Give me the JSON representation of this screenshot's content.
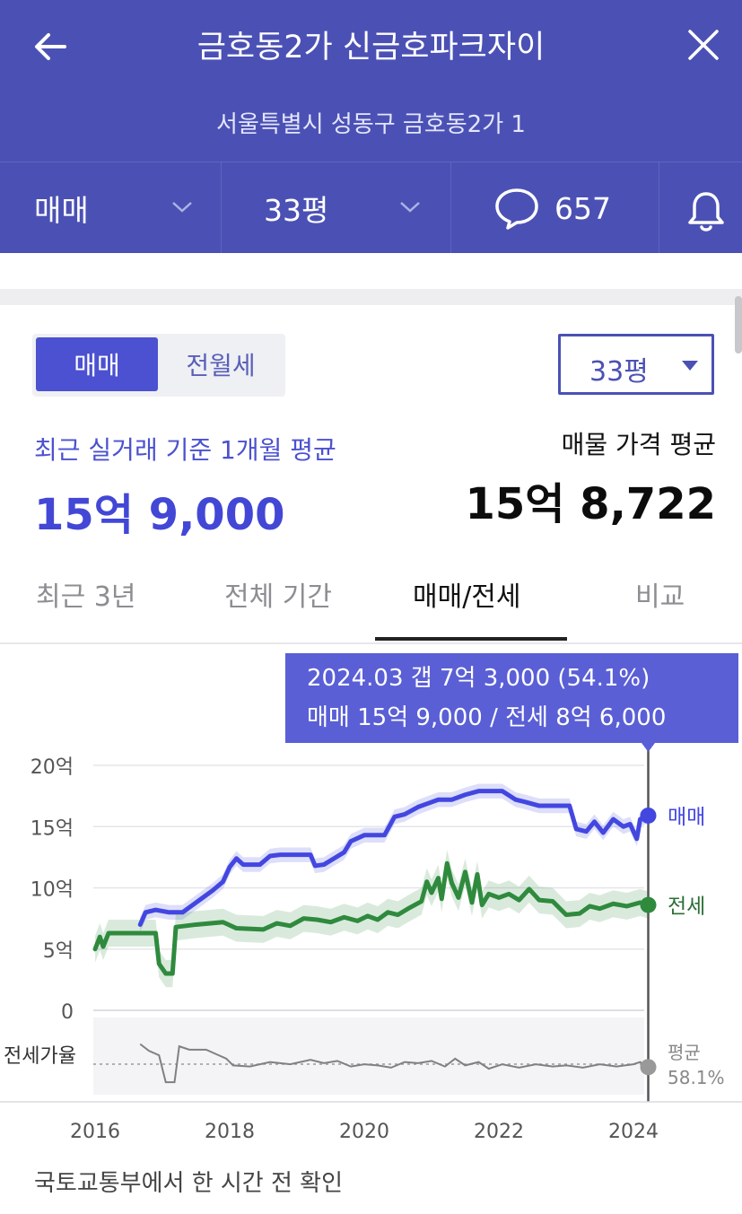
{
  "header": {
    "title": "금호동2가 신금호파크자이",
    "subtitle": "서울특별시 성동구 금호동2가 1",
    "filters": {
      "trade_type": "매매",
      "size": "33평",
      "comment_count": "657"
    }
  },
  "toggle": {
    "active": "매매",
    "inactive": "전월세"
  },
  "size_select": {
    "value": "33평"
  },
  "summary": {
    "recent_label": "최근 실거래 기준 1개월 평균",
    "recent_value": "15억 9,000",
    "listing_label": "매물 가격 평균",
    "listing_value": "15억 8,722"
  },
  "tabs": [
    "최근 3년",
    "전체 기간",
    "매매/전세",
    "비교"
  ],
  "active_tab": 2,
  "tooltip": {
    "line1": "2024.03  갭 7억 3,000 (54.1%)",
    "line2": "매매 15억 9,000 / 전세 8억 6,000"
  },
  "colors": {
    "header": "#4b51b4",
    "sale": "#4347e0",
    "jeonse": "#2f8a3e",
    "ratio": "#808080"
  },
  "chart_data": {
    "type": "line",
    "x_unit": "year",
    "xlim": [
      2015.95,
      2024.85
    ],
    "ylim": [
      0,
      20
    ],
    "yticks": [
      0,
      5,
      10,
      15,
      20
    ],
    "ytick_labels": [
      "0",
      "5억",
      "10억",
      "15억",
      "20억"
    ],
    "xticks": [
      2016,
      2018,
      2020,
      2022,
      2024
    ],
    "xtick_labels": [
      "2016",
      "2018",
      "2020",
      "2022",
      "2024"
    ],
    "series": [
      {
        "name": "매매",
        "values": [
          [
            2016.67,
            7.0
          ],
          [
            2016.75,
            8.0
          ],
          [
            2016.9,
            8.2
          ],
          [
            2017.1,
            8.0
          ],
          [
            2017.3,
            8.0
          ],
          [
            2017.45,
            8.6
          ],
          [
            2017.6,
            9.2
          ],
          [
            2017.75,
            9.8
          ],
          [
            2017.9,
            10.5
          ],
          [
            2018.0,
            11.7
          ],
          [
            2018.1,
            12.4
          ],
          [
            2018.2,
            11.9
          ],
          [
            2018.45,
            11.9
          ],
          [
            2018.6,
            12.6
          ],
          [
            2018.75,
            12.7
          ],
          [
            2019.2,
            12.7
          ],
          [
            2019.27,
            11.8
          ],
          [
            2019.4,
            11.9
          ],
          [
            2019.55,
            12.4
          ],
          [
            2019.7,
            12.9
          ],
          [
            2019.8,
            13.8
          ],
          [
            2020.0,
            14.3
          ],
          [
            2020.3,
            14.3
          ],
          [
            2020.45,
            15.8
          ],
          [
            2020.6,
            16.0
          ],
          [
            2020.8,
            16.6
          ],
          [
            2020.95,
            16.9
          ],
          [
            2021.1,
            17.2
          ],
          [
            2021.3,
            17.2
          ],
          [
            2021.5,
            17.6
          ],
          [
            2021.7,
            17.9
          ],
          [
            2022.05,
            17.9
          ],
          [
            2022.25,
            17.2
          ],
          [
            2022.4,
            17.0
          ],
          [
            2022.6,
            16.7
          ],
          [
            2022.8,
            16.7
          ],
          [
            2023.05,
            16.7
          ],
          [
            2023.15,
            14.8
          ],
          [
            2023.3,
            14.6
          ],
          [
            2023.42,
            15.4
          ],
          [
            2023.55,
            14.5
          ],
          [
            2023.7,
            15.6
          ],
          [
            2023.85,
            15.0
          ],
          [
            2023.95,
            15.2
          ],
          [
            2024.05,
            14.0
          ],
          [
            2024.1,
            15.6
          ],
          [
            2024.22,
            15.9
          ]
        ]
      },
      {
        "name": "전세",
        "values": [
          [
            2016.0,
            5.0
          ],
          [
            2016.07,
            6.0
          ],
          [
            2016.12,
            5.2
          ],
          [
            2016.2,
            6.3
          ],
          [
            2016.5,
            6.3
          ],
          [
            2016.8,
            6.3
          ],
          [
            2016.9,
            6.3
          ],
          [
            2016.95,
            3.8
          ],
          [
            2017.05,
            3.0
          ],
          [
            2017.15,
            3.0
          ],
          [
            2017.2,
            6.8
          ],
          [
            2017.5,
            7.0
          ],
          [
            2017.9,
            7.2
          ],
          [
            2018.1,
            6.7
          ],
          [
            2018.5,
            6.6
          ],
          [
            2018.7,
            7.1
          ],
          [
            2018.9,
            6.9
          ],
          [
            2019.1,
            7.5
          ],
          [
            2019.3,
            7.4
          ],
          [
            2019.5,
            7.2
          ],
          [
            2019.7,
            7.6
          ],
          [
            2019.9,
            7.3
          ],
          [
            2020.05,
            7.7
          ],
          [
            2020.2,
            7.4
          ],
          [
            2020.35,
            8.0
          ],
          [
            2020.5,
            7.8
          ],
          [
            2020.65,
            8.3
          ],
          [
            2020.85,
            8.9
          ],
          [
            2020.93,
            10.5
          ],
          [
            2021.0,
            9.6
          ],
          [
            2021.1,
            10.8
          ],
          [
            2021.15,
            9.1
          ],
          [
            2021.23,
            12.0
          ],
          [
            2021.3,
            10.4
          ],
          [
            2021.4,
            9.2
          ],
          [
            2021.5,
            11.3
          ],
          [
            2021.6,
            8.8
          ],
          [
            2021.68,
            11.1
          ],
          [
            2021.75,
            8.6
          ],
          [
            2021.85,
            9.5
          ],
          [
            2022.0,
            9.2
          ],
          [
            2022.15,
            9.5
          ],
          [
            2022.3,
            9.0
          ],
          [
            2022.45,
            9.9
          ],
          [
            2022.6,
            9.0
          ],
          [
            2022.8,
            8.9
          ],
          [
            2023.0,
            7.8
          ],
          [
            2023.2,
            7.9
          ],
          [
            2023.35,
            8.5
          ],
          [
            2023.5,
            8.3
          ],
          [
            2023.7,
            8.7
          ],
          [
            2023.9,
            8.5
          ],
          [
            2024.1,
            8.8
          ],
          [
            2024.22,
            8.6
          ]
        ]
      }
    ],
    "sale_end_label": "매매",
    "jeonse_end_label": "전세",
    "ratio_label": "전세가율",
    "ratio_avg_label": "평균",
    "ratio_avg_value": "58.1%",
    "ratio_values": [
      [
        2016.67,
        76
      ],
      [
        2016.8,
        70
      ],
      [
        2016.95,
        66
      ],
      [
        2017.05,
        42
      ],
      [
        2017.18,
        42
      ],
      [
        2017.25,
        74
      ],
      [
        2017.4,
        71
      ],
      [
        2017.65,
        71
      ],
      [
        2017.8,
        67
      ],
      [
        2017.95,
        63
      ],
      [
        2018.05,
        57
      ],
      [
        2018.3,
        56
      ],
      [
        2018.6,
        60
      ],
      [
        2018.9,
        58
      ],
      [
        2019.2,
        62
      ],
      [
        2019.4,
        59
      ],
      [
        2019.6,
        61
      ],
      [
        2019.8,
        56
      ],
      [
        2020.0,
        58
      ],
      [
        2020.2,
        57
      ],
      [
        2020.4,
        55
      ],
      [
        2020.6,
        60
      ],
      [
        2020.8,
        59
      ],
      [
        2021.0,
        61
      ],
      [
        2021.2,
        56
      ],
      [
        2021.35,
        63
      ],
      [
        2021.5,
        57
      ],
      [
        2021.7,
        60
      ],
      [
        2021.85,
        54
      ],
      [
        2022.05,
        58
      ],
      [
        2022.3,
        55
      ],
      [
        2022.55,
        58
      ],
      [
        2022.8,
        56
      ],
      [
        2023.0,
        57
      ],
      [
        2023.25,
        55
      ],
      [
        2023.5,
        58
      ],
      [
        2023.75,
        56
      ],
      [
        2024.0,
        58
      ],
      [
        2024.1,
        60
      ],
      [
        2024.22,
        55
      ]
    ]
  },
  "footer": "국토교통부에서 한 시간 전 확인"
}
